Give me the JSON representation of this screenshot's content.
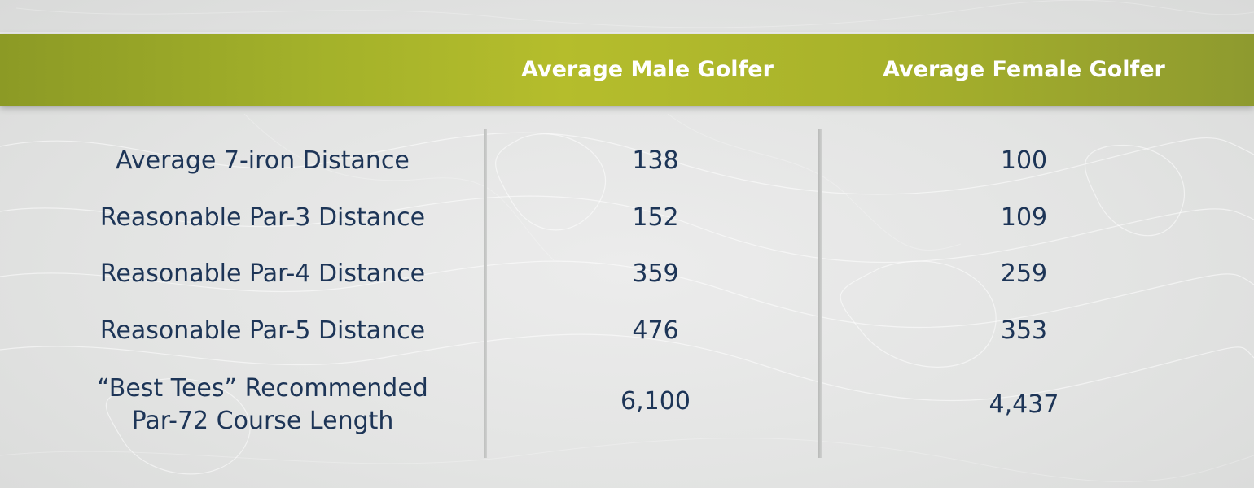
{
  "header": {
    "male_col": "Average Male Golfer",
    "female_col": "Average Female Golfer"
  },
  "rows": [
    {
      "label": "Average 7-iron Distance",
      "male": "138",
      "female": "100"
    },
    {
      "label": "Reasonable Par-3 Distance",
      "male": "152",
      "female": "109"
    },
    {
      "label": "Reasonable Par-4 Distance",
      "male": "359",
      "female": "259"
    },
    {
      "label": "Reasonable Par-5 Distance",
      "male": "476",
      "female": "353"
    },
    {
      "label_line1": "“Best Tees” Recommended",
      "label_line2": "Par-72 Course Length",
      "male": "6,100",
      "female": "4,437"
    }
  ],
  "colors": {
    "header_green": "#a3b12a",
    "text_navy": "#1d3557",
    "header_text": "#ffffff"
  }
}
